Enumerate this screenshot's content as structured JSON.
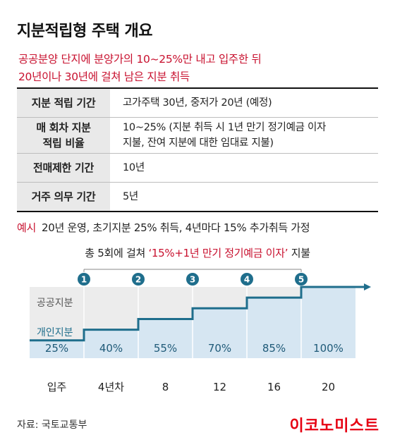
{
  "title": "지분적립형 주택 개요",
  "subtitle": {
    "line1": "공공분양 단지에 분양가의 10~25%만 내고 입주한 뒤",
    "line2": "20년이나 30년에 걸쳐 남은 지분 취득"
  },
  "table": [
    {
      "label": "지분 적립 기간",
      "value": "고가주택 30년, 중저가 20년 (예정)"
    },
    {
      "label": "매 회차 지분 적립 비율",
      "label_lines": [
        "매 회차 지분",
        "적립 비율"
      ],
      "value": "10~25% (지분 취득 시 1년 만기 정기예금 이자 지불, 잔여 지분에 대한 임대료 지불)",
      "value_lines": [
        "10~25% (지분 취득 시 1년 만기 정기예금 이자",
        "지불, 잔여 지분에 대한 임대료 지불)"
      ]
    },
    {
      "label": "전매제한 기간",
      "value": "10년"
    },
    {
      "label": "거주 의무 기간",
      "value": "5년"
    }
  ],
  "example": {
    "tag": "예시",
    "text": "20년 운영, 초기지분 25% 취득, 4년마다 15% 추가취득 가정"
  },
  "payment": {
    "prefix": "총 5회에 걸쳐",
    "highlight": "‘15%+1년 만기 정기예금 이자’",
    "suffix": "지불"
  },
  "chart_data": {
    "type": "step",
    "areas": [
      "공공지분",
      "개인지분"
    ],
    "x": [
      "입주",
      "4년차",
      "8",
      "12",
      "16",
      "20"
    ],
    "values": [
      25,
      40,
      55,
      70,
      85,
      100
    ],
    "value_labels": [
      "25%",
      "40%",
      "55%",
      "70%",
      "85%",
      "100%"
    ],
    "step_markers": [
      "1",
      "2",
      "3",
      "4",
      "5"
    ],
    "ylim": [
      0,
      100
    ],
    "colors": {
      "line": "#1f6e8c",
      "private_fill": "#d6e6f2",
      "public_fill": "#ececec",
      "marker": "#1f6e8c",
      "divider": "#ffffff"
    }
  },
  "source": "자료: 국토교통부",
  "brand": "이코노미스트"
}
